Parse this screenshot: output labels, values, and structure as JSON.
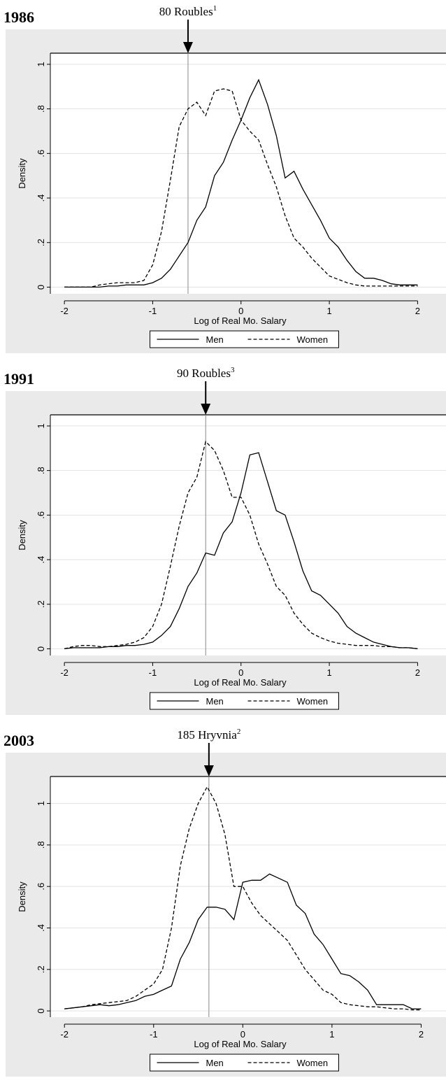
{
  "chart_data": [
    {
      "type": "line",
      "title": "1986",
      "annotation": "80 Roubles",
      "annotation_sup": "1",
      "vline": -0.6,
      "xlabel": "Log of Real Mo. Salary",
      "ylabel": "Density",
      "x": [
        -2,
        -1.9,
        -1.8,
        -1.7,
        -1.6,
        -1.5,
        -1.4,
        -1.3,
        -1.2,
        -1.1,
        -1,
        -0.9,
        -0.8,
        -0.7,
        -0.6,
        -0.5,
        -0.4,
        -0.3,
        -0.2,
        -0.1,
        0,
        0.1,
        0.2,
        0.3,
        0.4,
        0.5,
        0.6,
        0.7,
        0.8,
        0.9,
        1,
        1.1,
        1.2,
        1.3,
        1.4,
        1.5,
        1.6,
        1.7,
        1.8,
        1.9,
        2
      ],
      "series": [
        {
          "name": "Men",
          "color": "#000000",
          "style": "solid",
          "values": [
            0,
            0,
            0,
            0,
            0,
            0.005,
            0.005,
            0.01,
            0.01,
            0.01,
            0.02,
            0.04,
            0.08,
            0.14,
            0.2,
            0.3,
            0.36,
            0.5,
            0.56,
            0.66,
            0.75,
            0.85,
            0.93,
            0.82,
            0.68,
            0.49,
            0.52,
            0.44,
            0.37,
            0.3,
            0.22,
            0.18,
            0.12,
            0.07,
            0.04,
            0.04,
            0.03,
            0.015,
            0.01,
            0.01,
            0.01
          ]
        },
        {
          "name": "Women",
          "color": "#000000",
          "style": "dashed",
          "values": [
            0,
            0,
            0,
            0,
            0.01,
            0.015,
            0.02,
            0.02,
            0.02,
            0.03,
            0.1,
            0.25,
            0.48,
            0.72,
            0.8,
            0.83,
            0.77,
            0.88,
            0.89,
            0.88,
            0.75,
            0.7,
            0.66,
            0.55,
            0.45,
            0.32,
            0.22,
            0.18,
            0.13,
            0.09,
            0.05,
            0.035,
            0.02,
            0.01,
            0.005,
            0.005,
            0.005,
            0.005,
            0.005,
            0.005,
            0.005
          ]
        }
      ],
      "xlim": [
        -2.08,
        2.06
      ],
      "xticks": [
        -2,
        -1,
        0,
        1,
        2
      ],
      "ylim": [
        -0.03,
        1.05
      ],
      "yticks": [
        0,
        {
          "value": 0.2,
          "label": ".2"
        },
        {
          "value": 0.4,
          "label": ".4"
        },
        {
          "value": 0.6,
          "label": ".6"
        },
        {
          "value": 0.8,
          "label": ".8"
        },
        1
      ],
      "grid": true,
      "legend": "bottom"
    },
    {
      "type": "line",
      "title": "1991",
      "annotation": "90 Roubles",
      "annotation_sup": "3",
      "vline": -0.4,
      "xlabel": "Log of Real Mo. Salary",
      "ylabel": "Density",
      "x": [
        -2,
        -1.9,
        -1.8,
        -1.7,
        -1.6,
        -1.5,
        -1.4,
        -1.3,
        -1.2,
        -1.1,
        -1,
        -0.9,
        -0.8,
        -0.7,
        -0.6,
        -0.5,
        -0.4,
        -0.3,
        -0.2,
        -0.1,
        0,
        0.1,
        0.2,
        0.3,
        0.4,
        0.5,
        0.6,
        0.7,
        0.8,
        0.9,
        1,
        1.1,
        1.2,
        1.3,
        1.4,
        1.5,
        1.6,
        1.7,
        1.8,
        1.9,
        2
      ],
      "series": [
        {
          "name": "Men",
          "color": "#000000",
          "style": "solid",
          "values": [
            0,
            0.005,
            0.005,
            0.005,
            0.005,
            0.01,
            0.01,
            0.015,
            0.015,
            0.02,
            0.03,
            0.06,
            0.1,
            0.18,
            0.28,
            0.34,
            0.43,
            0.42,
            0.52,
            0.57,
            0.7,
            0.87,
            0.88,
            0.75,
            0.62,
            0.6,
            0.48,
            0.35,
            0.26,
            0.24,
            0.2,
            0.16,
            0.1,
            0.07,
            0.05,
            0.03,
            0.02,
            0.01,
            0.005,
            0.005,
            0
          ]
        },
        {
          "name": "Women",
          "color": "#000000",
          "style": "dashed",
          "values": [
            0,
            0.01,
            0.015,
            0.015,
            0.01,
            0.01,
            0.015,
            0.02,
            0.03,
            0.05,
            0.1,
            0.2,
            0.37,
            0.55,
            0.7,
            0.77,
            0.93,
            0.89,
            0.8,
            0.68,
            0.68,
            0.6,
            0.47,
            0.38,
            0.28,
            0.24,
            0.16,
            0.11,
            0.07,
            0.05,
            0.035,
            0.025,
            0.02,
            0.015,
            0.015,
            0.015,
            0.01,
            0.01,
            0.005,
            0.005,
            0
          ]
        }
      ],
      "xlim": [
        -2.08,
        2.06
      ],
      "xticks": [
        -2,
        -1,
        0,
        1,
        2
      ],
      "ylim": [
        -0.03,
        1.05
      ],
      "yticks": [
        0,
        {
          "value": 0.2,
          "label": ".2"
        },
        {
          "value": 0.4,
          "label": ".4"
        },
        {
          "value": 0.6,
          "label": ".6"
        },
        {
          "value": 0.8,
          "label": ".8"
        },
        1
      ],
      "grid": true,
      "legend": "bottom"
    },
    {
      "type": "line",
      "title": "2003",
      "annotation": "185 Hryvnia",
      "annotation_sup": "2",
      "vline": -0.38,
      "xlabel": "Log of Real Mo. Salary",
      "ylabel": "Density",
      "x": [
        -2,
        -1.9,
        -1.8,
        -1.7,
        -1.6,
        -1.5,
        -1.4,
        -1.3,
        -1.2,
        -1.1,
        -1,
        -0.9,
        -0.8,
        -0.7,
        -0.6,
        -0.5,
        -0.4,
        -0.3,
        -0.2,
        -0.1,
        0,
        0.1,
        0.2,
        0.3,
        0.4,
        0.5,
        0.6,
        0.7,
        0.8,
        0.9,
        1,
        1.1,
        1.2,
        1.3,
        1.4,
        1.5,
        1.6,
        1.7,
        1.8,
        1.9,
        2
      ],
      "series": [
        {
          "name": "Men",
          "color": "#000000",
          "style": "solid",
          "values": [
            0.01,
            0.015,
            0.02,
            0.025,
            0.03,
            0.025,
            0.03,
            0.04,
            0.05,
            0.07,
            0.08,
            0.1,
            0.12,
            0.25,
            0.33,
            0.44,
            0.5,
            0.5,
            0.49,
            0.44,
            0.62,
            0.63,
            0.63,
            0.66,
            0.64,
            0.62,
            0.51,
            0.47,
            0.37,
            0.32,
            0.25,
            0.18,
            0.17,
            0.14,
            0.1,
            0.03,
            0.03,
            0.03,
            0.03,
            0.01,
            0.01
          ]
        },
        {
          "name": "Women",
          "color": "#000000",
          "style": "dashed",
          "values": [
            0.01,
            0.015,
            0.02,
            0.03,
            0.035,
            0.04,
            0.045,
            0.05,
            0.07,
            0.1,
            0.13,
            0.2,
            0.4,
            0.7,
            0.88,
            1,
            1.08,
            1,
            0.85,
            0.6,
            0.6,
            0.52,
            0.46,
            0.42,
            0.38,
            0.34,
            0.27,
            0.2,
            0.15,
            0.1,
            0.08,
            0.04,
            0.03,
            0.025,
            0.02,
            0.02,
            0.015,
            0.01,
            0.01,
            0.005,
            0.005
          ]
        }
      ],
      "xlim": [
        -2.08,
        2.02
      ],
      "xticks": [
        -2,
        -1,
        0,
        1,
        2
      ],
      "ylim": [
        -0.03,
        1.13
      ],
      "yticks": [
        0,
        {
          "value": 0.2,
          "label": ".2"
        },
        {
          "value": 0.4,
          "label": ".4"
        },
        {
          "value": 0.6,
          "label": ".6"
        },
        {
          "value": 0.8,
          "label": ".8"
        },
        1
      ],
      "grid": true,
      "legend": "bottom"
    }
  ]
}
